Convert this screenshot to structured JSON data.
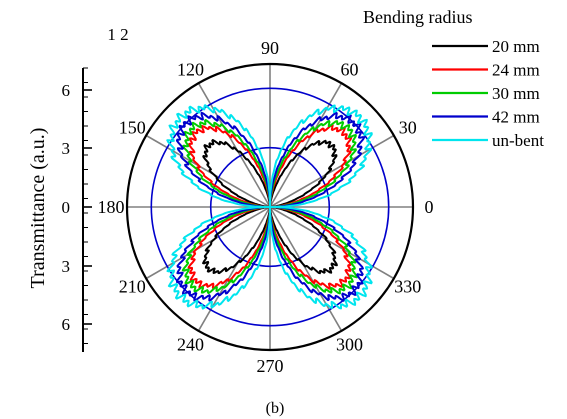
{
  "chart_data": {
    "type": "polar-line",
    "ylabel": "Transmittance (a.u.)",
    "caption": "(b)",
    "corner_label": "1 2",
    "radial_axis": {
      "range": [
        0,
        6
      ],
      "tick_labels_upper": [
        "6",
        "3",
        "0"
      ],
      "tick_labels_lower": [
        "3",
        "6"
      ],
      "ticks": [
        0,
        3,
        6
      ]
    },
    "angle_labels": [
      "0",
      "30",
      "60",
      "90",
      "120",
      "150",
      "180",
      "210",
      "240",
      "270",
      "300",
      "330"
    ],
    "angles_deg": [
      0,
      30,
      60,
      90,
      120,
      150,
      180,
      210,
      240,
      270,
      300,
      330
    ],
    "legend": {
      "title": "Bending radius",
      "placement": "top-right"
    },
    "series": [
      {
        "name": "20 mm",
        "color": "#000000",
        "kind": "petal",
        "lobe_peak": 4.4,
        "lobe_angles_deg": [
          45,
          135,
          225,
          315
        ],
        "lobe_power": 4
      },
      {
        "name": "24 mm",
        "color": "#ff0000",
        "kind": "petal",
        "lobe_peak": 5.3,
        "lobe_angles_deg": [
          45,
          135,
          225,
          315
        ],
        "lobe_power": 3
      },
      {
        "name": "30 mm",
        "color": "#00cc00",
        "kind": "petal",
        "lobe_peak": 5.6,
        "lobe_angles_deg": [
          45,
          135,
          225,
          315
        ],
        "lobe_power": 2.6
      },
      {
        "name": "42 mm",
        "color": "#0000cc",
        "kind": "petal",
        "lobe_peak": 6.0,
        "lobe_angles_deg": [
          45,
          135,
          225,
          315
        ],
        "lobe_power": 2.2
      },
      {
        "name": "un-bent",
        "color": "#00e5ee",
        "kind": "petal",
        "lobe_peak": 6.4,
        "lobe_angles_deg": [
          45,
          135,
          225,
          315
        ],
        "lobe_power": 1.6
      }
    ],
    "reference_circles": [
      {
        "radius": 3,
        "color": "#0000cc"
      },
      {
        "radius": 6,
        "color": "#0000cc"
      }
    ],
    "grid": true
  }
}
